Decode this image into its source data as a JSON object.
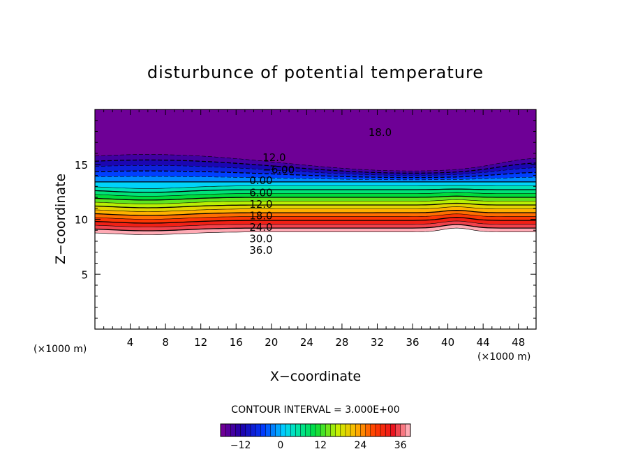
{
  "chart_data": {
    "type": "contour",
    "title": "disturbunce of potential temperature",
    "xlabel": "X−coordinate",
    "ylabel": "Z−coordinate",
    "x_unit_left": "(×1000 m)",
    "x_unit_right": "(×1000 m)",
    "xlim": [
      0,
      50
    ],
    "ylim": [
      0,
      20
    ],
    "x_ticks": [
      {
        "v": 4,
        "label": "4"
      },
      {
        "v": 8,
        "label": "8"
      },
      {
        "v": 12,
        "label": "12"
      },
      {
        "v": 16,
        "label": "16"
      },
      {
        "v": 20,
        "label": "20"
      },
      {
        "v": 24,
        "label": "24"
      },
      {
        "v": 28,
        "label": "28"
      },
      {
        "v": 32,
        "label": "32"
      },
      {
        "v": 36,
        "label": "36"
      },
      {
        "v": 40,
        "label": "40"
      },
      {
        "v": 44,
        "label": "44"
      },
      {
        "v": 48,
        "label": "48"
      }
    ],
    "y_ticks": [
      {
        "v": 5,
        "label": "5"
      },
      {
        "v": 10,
        "label": "10"
      },
      {
        "v": 15,
        "label": "15"
      }
    ],
    "contour_interval_text": "CONTOUR INTERVAL = 3.000E+00",
    "interval": 3,
    "levels_min": -18,
    "levels_max": 39,
    "contour_labels": [
      {
        "text": "18.0",
        "x": 31,
        "z": 17.6
      },
      {
        "text": "12.0",
        "x": 19,
        "z": 15.3
      },
      {
        "text": "−6.00",
        "x": 19,
        "z": 14.2
      },
      {
        "text": "0.00",
        "x": 17.5,
        "z": 13.2
      },
      {
        "text": "6.00",
        "x": 17.5,
        "z": 12.1
      },
      {
        "text": "12.0",
        "x": 17.5,
        "z": 11.05
      },
      {
        "text": "18.0",
        "x": 17.5,
        "z": 10.0
      },
      {
        "text": "24.0",
        "x": 17.5,
        "z": 8.95
      },
      {
        "text": "30.0",
        "x": 17.5,
        "z": 7.9
      },
      {
        "text": "36.0",
        "x": 17.5,
        "z": 6.85
      }
    ],
    "colorbar": {
      "min": -18,
      "max": 39,
      "ticks": [
        {
          "v": -12,
          "label": "−12"
        },
        {
          "v": 0,
          "label": "0"
        },
        {
          "v": 12,
          "label": "12"
        },
        {
          "v": 24,
          "label": "24"
        },
        {
          "v": 36,
          "label": "36"
        }
      ]
    }
  }
}
